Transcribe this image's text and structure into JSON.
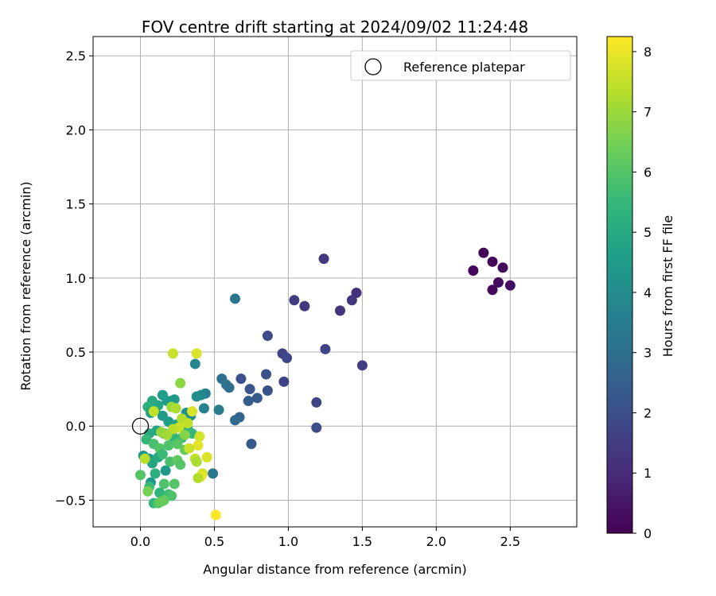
{
  "chart_data": {
    "type": "scatter",
    "title": "FOV centre drift starting at 2024/09/02 11:24:48",
    "xlabel": "Angular distance from reference (arcmin)",
    "ylabel": "Rotation from reference (arcmin)",
    "xlim": [
      -0.32,
      2.95
    ],
    "ylim": [
      -0.68,
      2.63
    ],
    "xticks": [
      0.0,
      0.5,
      1.0,
      1.5,
      2.0,
      2.5
    ],
    "xtick_labels": [
      "0.0",
      "0.5",
      "1.0",
      "1.5",
      "2.0",
      "2.5"
    ],
    "yticks": [
      -0.5,
      0.0,
      0.5,
      1.0,
      1.5,
      2.0,
      2.5
    ],
    "ytick_labels": [
      "−0.5",
      "0.0",
      "0.5",
      "1.0",
      "1.5",
      "2.0",
      "2.5"
    ],
    "grid": true,
    "colormap": "viridis",
    "colorbar": {
      "label": "Hours from first FF file",
      "range": [
        0,
        8.25
      ],
      "ticks": [
        0,
        1,
        2,
        3,
        4,
        5,
        6,
        7,
        8
      ],
      "tick_labels": [
        "0",
        "1",
        "2",
        "3",
        "4",
        "5",
        "6",
        "7",
        "8"
      ]
    },
    "legend": {
      "position": "top-right",
      "entries": [
        {
          "label": "Reference platepar",
          "marker": "open-circle"
        }
      ]
    },
    "reference_point": {
      "x": 0.0,
      "y": 0.0
    },
    "points": [
      {
        "x": 2.32,
        "y": 1.17,
        "c": 0.05
      },
      {
        "x": 2.38,
        "y": 1.11,
        "c": 0.1
      },
      {
        "x": 2.45,
        "y": 1.07,
        "c": 0.2
      },
      {
        "x": 2.25,
        "y": 1.05,
        "c": 0.15
      },
      {
        "x": 2.42,
        "y": 0.97,
        "c": 0.25
      },
      {
        "x": 2.5,
        "y": 0.95,
        "c": 0.3
      },
      {
        "x": 2.38,
        "y": 0.92,
        "c": 0.2
      },
      {
        "x": 1.24,
        "y": 1.13,
        "c": 1.4
      },
      {
        "x": 1.46,
        "y": 0.9,
        "c": 1.2
      },
      {
        "x": 1.43,
        "y": 0.85,
        "c": 1.3
      },
      {
        "x": 1.04,
        "y": 0.85,
        "c": 1.5
      },
      {
        "x": 1.11,
        "y": 0.81,
        "c": 1.35
      },
      {
        "x": 1.35,
        "y": 0.78,
        "c": 1.25
      },
      {
        "x": 1.25,
        "y": 0.52,
        "c": 1.7
      },
      {
        "x": 0.96,
        "y": 0.49,
        "c": 1.6
      },
      {
        "x": 0.99,
        "y": 0.46,
        "c": 1.8
      },
      {
        "x": 1.5,
        "y": 0.41,
        "c": 1.5
      },
      {
        "x": 0.86,
        "y": 0.61,
        "c": 1.9
      },
      {
        "x": 0.64,
        "y": 0.86,
        "c": 3.2
      },
      {
        "x": 0.97,
        "y": 0.3,
        "c": 1.65
      },
      {
        "x": 0.85,
        "y": 0.35,
        "c": 2.1
      },
      {
        "x": 0.68,
        "y": 0.32,
        "c": 2.0
      },
      {
        "x": 0.74,
        "y": 0.25,
        "c": 2.2
      },
      {
        "x": 0.86,
        "y": 0.24,
        "c": 2.1
      },
      {
        "x": 0.79,
        "y": 0.19,
        "c": 2.3
      },
      {
        "x": 0.73,
        "y": 0.17,
        "c": 2.4
      },
      {
        "x": 1.19,
        "y": 0.16,
        "c": 1.75
      },
      {
        "x": 1.19,
        "y": -0.01,
        "c": 1.9
      },
      {
        "x": 0.75,
        "y": -0.12,
        "c": 2.3
      },
      {
        "x": 0.67,
        "y": 0.06,
        "c": 2.6
      },
      {
        "x": 0.64,
        "y": 0.04,
        "c": 2.8
      },
      {
        "x": 0.55,
        "y": 0.32,
        "c": 3.0
      },
      {
        "x": 0.58,
        "y": 0.28,
        "c": 3.2
      },
      {
        "x": 0.6,
        "y": 0.26,
        "c": 3.0
      },
      {
        "x": 0.53,
        "y": 0.11,
        "c": 3.5
      },
      {
        "x": 0.49,
        "y": -0.32,
        "c": 3.2
      },
      {
        "x": 0.37,
        "y": 0.42,
        "c": 3.8
      },
      {
        "x": 0.44,
        "y": 0.22,
        "c": 3.6
      },
      {
        "x": 0.41,
        "y": 0.21,
        "c": 3.9
      },
      {
        "x": 0.38,
        "y": 0.2,
        "c": 4.0
      },
      {
        "x": 0.43,
        "y": 0.12,
        "c": 3.7
      },
      {
        "x": 0.31,
        "y": 0.09,
        "c": 4.2
      },
      {
        "x": 0.34,
        "y": 0.07,
        "c": 4.1
      },
      {
        "x": 0.23,
        "y": 0.18,
        "c": 4.4
      },
      {
        "x": 0.21,
        "y": 0.17,
        "c": 4.3
      },
      {
        "x": 0.18,
        "y": 0.17,
        "c": 4.5
      },
      {
        "x": 0.15,
        "y": 0.21,
        "c": 4.6
      },
      {
        "x": 0.12,
        "y": 0.14,
        "c": 4.8
      },
      {
        "x": 0.08,
        "y": 0.17,
        "c": 5.0
      },
      {
        "x": 0.05,
        "y": 0.13,
        "c": 5.2
      },
      {
        "x": 0.1,
        "y": 0.11,
        "c": 4.9
      },
      {
        "x": 0.07,
        "y": 0.09,
        "c": 4.7
      },
      {
        "x": 0.15,
        "y": 0.07,
        "c": 4.5
      },
      {
        "x": 0.19,
        "y": 0.03,
        "c": 4.6
      },
      {
        "x": 0.24,
        "y": 0.01,
        "c": 4.8
      },
      {
        "x": 0.29,
        "y": 0.04,
        "c": 5.0
      },
      {
        "x": 0.32,
        "y": -0.02,
        "c": 5.3
      },
      {
        "x": 0.35,
        "y": -0.05,
        "c": 5.5
      },
      {
        "x": 0.28,
        "y": -0.08,
        "c": 5.7
      },
      {
        "x": 0.22,
        "y": -0.07,
        "c": 5.4
      },
      {
        "x": 0.16,
        "y": -0.05,
        "c": 5.1
      },
      {
        "x": 0.11,
        "y": -0.03,
        "c": 4.8
      },
      {
        "x": 0.06,
        "y": -0.05,
        "c": 5.0
      },
      {
        "x": 0.04,
        "y": -0.09,
        "c": 5.5
      },
      {
        "x": 0.09,
        "y": -0.12,
        "c": 5.8
      },
      {
        "x": 0.13,
        "y": -0.15,
        "c": 6.0
      },
      {
        "x": 0.19,
        "y": -0.13,
        "c": 5.9
      },
      {
        "x": 0.25,
        "y": -0.12,
        "c": 6.1
      },
      {
        "x": 0.3,
        "y": -0.16,
        "c": 6.3
      },
      {
        "x": 0.02,
        "y": -0.2,
        "c": 4.4
      },
      {
        "x": 0.06,
        "y": -0.22,
        "c": 4.6
      },
      {
        "x": 0.08,
        "y": -0.25,
        "c": 4.8
      },
      {
        "x": 0.12,
        "y": -0.21,
        "c": 5.0
      },
      {
        "x": 0.15,
        "y": -0.19,
        "c": 5.6
      },
      {
        "x": 0.2,
        "y": -0.24,
        "c": 5.8
      },
      {
        "x": 0.25,
        "y": -0.23,
        "c": 6.2
      },
      {
        "x": 0.27,
        "y": -0.26,
        "c": 6.0
      },
      {
        "x": 0.17,
        "y": -0.3,
        "c": 4.4
      },
      {
        "x": 0.1,
        "y": -0.32,
        "c": 5.2
      },
      {
        "x": 0.0,
        "y": -0.33,
        "c": 6.0
      },
      {
        "x": 0.07,
        "y": -0.38,
        "c": 4.5
      },
      {
        "x": 0.06,
        "y": -0.41,
        "c": 5.6
      },
      {
        "x": 0.16,
        "y": -0.39,
        "c": 5.9
      },
      {
        "x": 0.23,
        "y": -0.39,
        "c": 6.0
      },
      {
        "x": 0.05,
        "y": -0.44,
        "c": 6.5
      },
      {
        "x": 0.13,
        "y": -0.45,
        "c": 5.3
      },
      {
        "x": 0.19,
        "y": -0.46,
        "c": 5.7
      },
      {
        "x": 0.21,
        "y": -0.47,
        "c": 5.9
      },
      {
        "x": 0.16,
        "y": -0.5,
        "c": 6.2
      },
      {
        "x": 0.09,
        "y": -0.52,
        "c": 5.4
      },
      {
        "x": 0.12,
        "y": -0.52,
        "c": 6.1
      },
      {
        "x": 0.14,
        "y": -0.51,
        "c": 6.3
      },
      {
        "x": 0.27,
        "y": 0.29,
        "c": 6.8
      },
      {
        "x": 0.21,
        "y": 0.13,
        "c": 7.0
      },
      {
        "x": 0.24,
        "y": 0.12,
        "c": 7.2
      },
      {
        "x": 0.28,
        "y": 0.05,
        "c": 7.3
      },
      {
        "x": 0.32,
        "y": 0.02,
        "c": 7.5
      },
      {
        "x": 0.26,
        "y": -0.01,
        "c": 7.6
      },
      {
        "x": 0.22,
        "y": -0.02,
        "c": 7.4
      },
      {
        "x": 0.35,
        "y": 0.1,
        "c": 7.8
      },
      {
        "x": 0.09,
        "y": 0.1,
        "c": 7.5
      },
      {
        "x": 0.14,
        "y": -0.04,
        "c": 6.9
      },
      {
        "x": 0.18,
        "y": -0.06,
        "c": 7.1
      },
      {
        "x": 0.3,
        "y": -0.06,
        "c": 6.7
      },
      {
        "x": 0.4,
        "y": -0.07,
        "c": 7.7
      },
      {
        "x": 0.39,
        "y": -0.13,
        "c": 7.9
      },
      {
        "x": 0.33,
        "y": -0.15,
        "c": 7.6
      },
      {
        "x": 0.45,
        "y": -0.21,
        "c": 7.8
      },
      {
        "x": 0.37,
        "y": -0.22,
        "c": 7.5
      },
      {
        "x": 0.38,
        "y": -0.24,
        "c": 7.2
      },
      {
        "x": 0.03,
        "y": -0.22,
        "c": 7.4
      },
      {
        "x": 0.42,
        "y": -0.32,
        "c": 7.7
      },
      {
        "x": 0.41,
        "y": -0.34,
        "c": 8.0
      },
      {
        "x": 0.39,
        "y": -0.35,
        "c": 7.3
      },
      {
        "x": 0.22,
        "y": 0.49,
        "c": 7.6
      },
      {
        "x": 0.38,
        "y": 0.49,
        "c": 7.8
      },
      {
        "x": 0.51,
        "y": -0.6,
        "c": 8.2
      }
    ]
  }
}
